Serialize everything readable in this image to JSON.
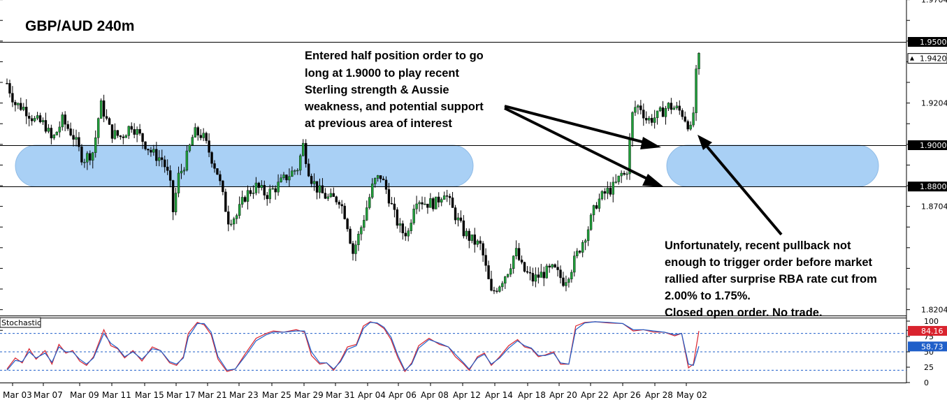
{
  "chart_data": [
    {
      "type": "candlestick",
      "title": "GBP/AUD 240m",
      "ylim": [
        1.8104,
        1.9704
      ],
      "y_ticks": [
        1.9704,
        1.9204,
        1.8704,
        1.8204
      ],
      "x_ticks": [
        "Mar 03",
        "Mar 07",
        "Mar 09",
        "Mar 11",
        "Mar 15",
        "Mar 17",
        "Mar 21",
        "Mar 23",
        "Mar 25",
        "Mar 29",
        "Mar 31",
        "Apr 04",
        "Apr 06",
        "Apr 08",
        "Apr 12",
        "Apr 14",
        "Apr 18",
        "Apr 20",
        "Apr 22",
        "Apr 26",
        "Apr 28",
        "May 02"
      ],
      "horizontal_lines": [
        {
          "value": 1.95,
          "label": "1.9500"
        },
        {
          "value": 1.9,
          "label": "1.9000"
        },
        {
          "value": 1.88,
          "label": "1.8800"
        }
      ],
      "current_price": {
        "value": 1.942,
        "label": "1.9420"
      },
      "zones": [
        {
          "from_date": "Mar 03",
          "to_date": "Apr 12",
          "low": 1.88,
          "high": 1.9
        },
        {
          "from_date": "Apr 28",
          "to_date": "May 02",
          "low": 1.88,
          "high": 1.9
        }
      ],
      "price_path": [
        [
          0,
          1.93
        ],
        [
          12,
          1.92
        ],
        [
          25,
          1.918
        ],
        [
          40,
          1.912
        ],
        [
          55,
          1.91
        ],
        [
          65,
          1.902
        ],
        [
          80,
          1.912
        ],
        [
          95,
          1.905
        ],
        [
          110,
          1.893
        ],
        [
          125,
          1.897
        ],
        [
          135,
          1.92
        ],
        [
          140,
          1.916
        ],
        [
          150,
          1.906
        ],
        [
          165,
          1.904
        ],
        [
          180,
          1.91
        ],
        [
          195,
          1.903
        ],
        [
          210,
          1.896
        ],
        [
          225,
          1.893
        ],
        [
          235,
          1.883
        ],
        [
          240,
          1.868
        ],
        [
          248,
          1.885
        ],
        [
          258,
          1.892
        ],
        [
          270,
          1.906
        ],
        [
          282,
          1.905
        ],
        [
          292,
          1.897
        ],
        [
          305,
          1.886
        ],
        [
          312,
          1.875
        ],
        [
          320,
          1.864
        ],
        [
          332,
          1.866
        ],
        [
          345,
          1.876
        ],
        [
          360,
          1.88
        ],
        [
          375,
          1.876
        ],
        [
          390,
          1.88
        ],
        [
          405,
          1.885
        ],
        [
          420,
          1.889
        ],
        [
          428,
          1.9
        ],
        [
          438,
          1.885
        ],
        [
          450,
          1.878
        ],
        [
          465,
          1.874
        ],
        [
          480,
          1.874
        ],
        [
          490,
          1.865
        ],
        [
          500,
          1.848
        ],
        [
          510,
          1.858
        ],
        [
          520,
          1.87
        ],
        [
          530,
          1.882
        ],
        [
          540,
          1.885
        ],
        [
          550,
          1.877
        ],
        [
          560,
          1.866
        ],
        [
          570,
          1.858
        ],
        [
          580,
          1.858
        ],
        [
          590,
          1.875
        ],
        [
          605,
          1.872
        ],
        [
          620,
          1.872
        ],
        [
          632,
          1.878
        ],
        [
          645,
          1.868
        ],
        [
          660,
          1.858
        ],
        [
          672,
          1.854
        ],
        [
          685,
          1.851
        ],
        [
          700,
          1.828
        ],
        [
          712,
          1.833
        ],
        [
          725,
          1.84
        ],
        [
          735,
          1.849
        ],
        [
          745,
          1.84
        ],
        [
          760,
          1.835
        ],
        [
          775,
          1.838
        ],
        [
          790,
          1.84
        ],
        [
          805,
          1.834
        ],
        [
          815,
          1.84
        ],
        [
          825,
          1.848
        ],
        [
          840,
          1.86
        ],
        [
          852,
          1.872
        ],
        [
          865,
          1.877
        ],
        [
          878,
          1.88
        ],
        [
          888,
          1.886
        ],
        [
          895,
          1.885
        ],
        [
          905,
          1.918
        ],
        [
          915,
          1.919
        ],
        [
          925,
          1.912
        ],
        [
          940,
          1.914
        ],
        [
          955,
          1.919
        ],
        [
          965,
          1.918
        ],
        [
          975,
          1.916
        ],
        [
          985,
          1.91
        ],
        [
          990,
          1.905
        ],
        [
          995,
          1.932
        ],
        [
          1000,
          1.942
        ]
      ],
      "annotations": [
        {
          "lines": [
            "Entered half position order to go",
            "long at 1.9000 to play recent",
            "Sterling strength & Aussie",
            "weakness, and potential support",
            "at previous area of interest"
          ]
        },
        {
          "lines": [
            "Unfortunately, recent pullback not",
            "enough to trigger order before market",
            "rallied after surprise RBA rate cut from",
            "2.00% to 1.75%.",
            "Closed open order. No trade."
          ]
        }
      ]
    },
    {
      "type": "line",
      "name": "Stochastic",
      "ylim": [
        0,
        100
      ],
      "y_ticks": [
        100,
        75,
        50,
        25,
        0
      ],
      "levels": [
        80,
        50,
        20
      ],
      "values": [
        {
          "value": 84.16,
          "label": "84.16",
          "color": "#d9232e"
        },
        {
          "value": 58.73,
          "label": "58.73",
          "color": "#1f5fc9"
        }
      ],
      "series": [
        {
          "color": "#d9232e",
          "points": [
            [
              0,
              22
            ],
            [
              12,
              40
            ],
            [
              22,
              32
            ],
            [
              32,
              55
            ],
            [
              42,
              38
            ],
            [
              55,
              52
            ],
            [
              65,
              30
            ],
            [
              75,
              62
            ],
            [
              85,
              48
            ],
            [
              95,
              52
            ],
            [
              105,
              35
            ],
            [
              115,
              28
            ],
            [
              125,
              42
            ],
            [
              140,
              86
            ],
            [
              150,
              60
            ],
            [
              160,
              55
            ],
            [
              170,
              40
            ],
            [
              182,
              52
            ],
            [
              195,
              35
            ],
            [
              210,
              58
            ],
            [
              222,
              52
            ],
            [
              235,
              32
            ],
            [
              245,
              28
            ],
            [
              255,
              42
            ],
            [
              262,
              80
            ],
            [
              275,
              98
            ],
            [
              285,
              94
            ],
            [
              295,
              78
            ],
            [
              305,
              38
            ],
            [
              318,
              18
            ],
            [
              330,
              22
            ],
            [
              345,
              48
            ],
            [
              360,
              72
            ],
            [
              375,
              80
            ],
            [
              385,
              84
            ],
            [
              400,
              82
            ],
            [
              418,
              86
            ],
            [
              430,
              82
            ],
            [
              440,
              44
            ],
            [
              452,
              30
            ],
            [
              462,
              32
            ],
            [
              472,
              20
            ],
            [
              482,
              36
            ],
            [
              492,
              58
            ],
            [
              505,
              62
            ],
            [
              515,
              92
            ],
            [
              525,
              99
            ],
            [
              535,
              96
            ],
            [
              545,
              88
            ],
            [
              555,
              70
            ],
            [
              565,
              40
            ],
            [
              575,
              18
            ],
            [
              585,
              32
            ],
            [
              595,
              60
            ],
            [
              610,
              72
            ],
            [
              625,
              62
            ],
            [
              638,
              58
            ],
            [
              648,
              42
            ],
            [
              660,
              30
            ],
            [
              668,
              20
            ],
            [
              680,
              42
            ],
            [
              690,
              48
            ],
            [
              700,
              28
            ],
            [
              712,
              42
            ],
            [
              725,
              60
            ],
            [
              738,
              70
            ],
            [
              748,
              58
            ],
            [
              758,
              55
            ],
            [
              768,
              42
            ],
            [
              778,
              45
            ],
            [
              790,
              50
            ],
            [
              800,
              30
            ],
            [
              812,
              30
            ],
            [
              822,
              92
            ],
            [
              835,
              98
            ],
            [
              850,
              99
            ],
            [
              870,
              97
            ],
            [
              890,
              96
            ],
            [
              905,
              84
            ],
            [
              920,
              86
            ],
            [
              935,
              82
            ],
            [
              950,
              82
            ],
            [
              965,
              76
            ],
            [
              975,
              80
            ],
            [
              985,
              24
            ],
            [
              992,
              30
            ],
            [
              1000,
              84
            ]
          ]
        },
        {
          "color": "#1f5fc9",
          "points": [
            [
              0,
              20
            ],
            [
              12,
              36
            ],
            [
              22,
              34
            ],
            [
              32,
              50
            ],
            [
              42,
              40
            ],
            [
              55,
              48
            ],
            [
              65,
              33
            ],
            [
              75,
              58
            ],
            [
              85,
              50
            ],
            [
              95,
              50
            ],
            [
              105,
              38
            ],
            [
              115,
              30
            ],
            [
              125,
              40
            ],
            [
              140,
              80
            ],
            [
              150,
              64
            ],
            [
              160,
              56
            ],
            [
              170,
              42
            ],
            [
              182,
              50
            ],
            [
              195,
              38
            ],
            [
              210,
              55
            ],
            [
              222,
              52
            ],
            [
              235,
              34
            ],
            [
              245,
              30
            ],
            [
              255,
              40
            ],
            [
              262,
              74
            ],
            [
              275,
              96
            ],
            [
              285,
              96
            ],
            [
              295,
              82
            ],
            [
              305,
              42
            ],
            [
              318,
              20
            ],
            [
              330,
              22
            ],
            [
              345,
              44
            ],
            [
              360,
              68
            ],
            [
              375,
              78
            ],
            [
              385,
              82
            ],
            [
              400,
              82
            ],
            [
              418,
              84
            ],
            [
              430,
              84
            ],
            [
              440,
              50
            ],
            [
              452,
              32
            ],
            [
              462,
              32
            ],
            [
              472,
              22
            ],
            [
              482,
              34
            ],
            [
              492,
              54
            ],
            [
              505,
              60
            ],
            [
              515,
              88
            ],
            [
              525,
              98
            ],
            [
              535,
              97
            ],
            [
              545,
              90
            ],
            [
              555,
              74
            ],
            [
              565,
              44
            ],
            [
              575,
              20
            ],
            [
              585,
              30
            ],
            [
              595,
              56
            ],
            [
              610,
              70
            ],
            [
              625,
              64
            ],
            [
              638,
              58
            ],
            [
              648,
              46
            ],
            [
              660,
              32
            ],
            [
              668,
              22
            ],
            [
              680,
              40
            ],
            [
              690,
              46
            ],
            [
              700,
              30
            ],
            [
              712,
              40
            ],
            [
              725,
              56
            ],
            [
              738,
              68
            ],
            [
              748,
              60
            ],
            [
              758,
              56
            ],
            [
              768,
              44
            ],
            [
              778,
              44
            ],
            [
              790,
              48
            ],
            [
              800,
              32
            ],
            [
              812,
              30
            ],
            [
              822,
              86
            ],
            [
              835,
              97
            ],
            [
              850,
              99
            ],
            [
              870,
              98
            ],
            [
              890,
              96
            ],
            [
              905,
              86
            ],
            [
              920,
              86
            ],
            [
              935,
              84
            ],
            [
              950,
              82
            ],
            [
              965,
              78
            ],
            [
              975,
              80
            ],
            [
              985,
              30
            ],
            [
              992,
              28
            ],
            [
              1000,
              59
            ]
          ]
        }
      ]
    }
  ]
}
